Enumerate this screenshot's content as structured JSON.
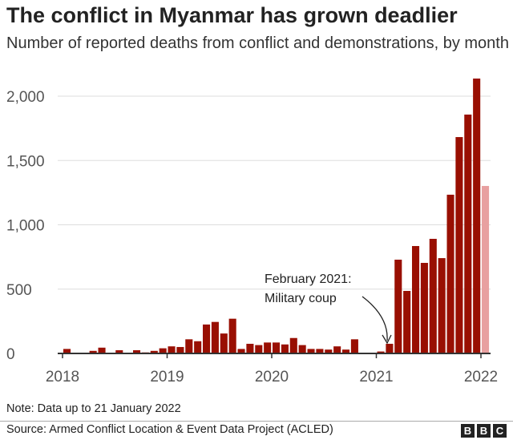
{
  "chart_data": {
    "type": "bar",
    "title": "The conflict in Myanmar has grown deadlier",
    "subtitle": "Number of reported deaths from conflict and demonstrations, by month",
    "xlabel": "",
    "ylabel": "",
    "ylim": [
      0,
      2000
    ],
    "yticks": [
      0,
      500,
      1000,
      1500,
      2000
    ],
    "ytick_labels": [
      "0",
      "500",
      "1,000",
      "1,500",
      "2,000"
    ],
    "xtick_labels": [
      "2018",
      "2019",
      "2020",
      "2021",
      "2022"
    ],
    "grid": true,
    "start": "2018-01",
    "values": [
      35,
      0,
      0,
      20,
      45,
      5,
      25,
      3,
      25,
      8,
      20,
      40,
      55,
      50,
      110,
      95,
      225,
      245,
      155,
      270,
      35,
      75,
      65,
      85,
      85,
      70,
      120,
      65,
      35,
      35,
      30,
      55,
      30,
      110,
      5,
      2,
      15,
      75,
      729,
      486,
      835,
      704,
      891,
      741,
      1234,
      1682,
      1857,
      2137,
      1302
    ],
    "bar_color": "#990f02",
    "partial_color": "#e8a0a0",
    "annotation": {
      "line1": "February 2021:",
      "line2": "Military coup"
    }
  },
  "note": "Note: Data up to 21 January 2022",
  "source": "Source: Armed Conflict Location & Event Data Project (ACLED)",
  "logo": [
    "B",
    "B",
    "C"
  ]
}
